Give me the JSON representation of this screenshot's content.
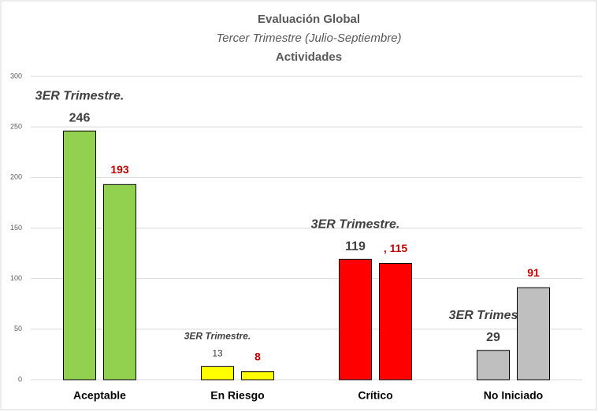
{
  "chart_data": {
    "type": "bar",
    "title": "Evaluación Global",
    "subtitle": "Tercer Trimestre (Julio-Septiembre)",
    "subtitle2": "Actividades",
    "categories": [
      "Aceptable",
      "En Riesgo",
      "Crítico",
      "No Iniciado"
    ],
    "category_colors": [
      "#92d050",
      "#ffff00",
      "#ff0000",
      "#bfbfbf"
    ],
    "series": [
      {
        "name": "3ER Trimestre.",
        "label_color": "#404040",
        "values": [
          246,
          13,
          119,
          29
        ]
      },
      {
        "label_color": "#c00000",
        "values": [
          193,
          8,
          115,
          91
        ],
        "value_labels": [
          "193",
          "8",
          ", 115",
          "91"
        ]
      }
    ],
    "ylim": [
      0,
      300
    ],
    "yticks": [
      0,
      50,
      100,
      150,
      200,
      250,
      300
    ],
    "grid": true
  }
}
